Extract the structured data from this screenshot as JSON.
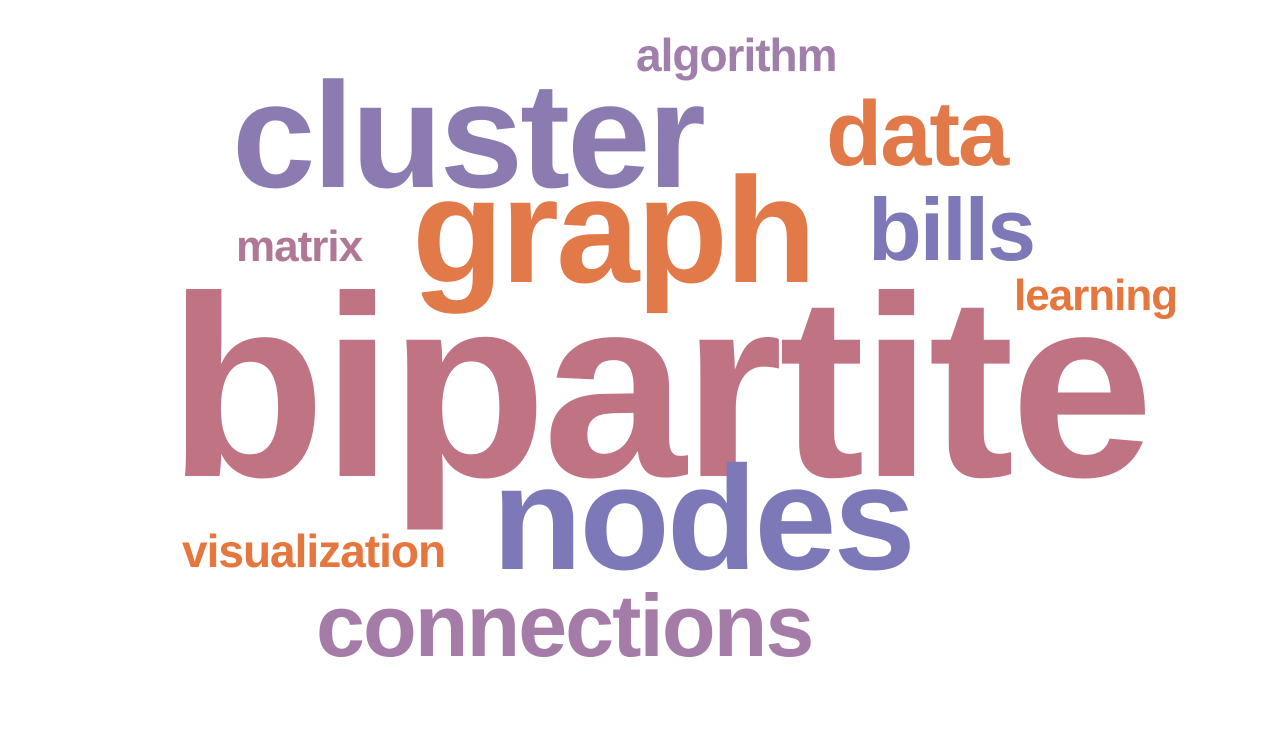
{
  "words": {
    "bipartite": {
      "text": "bipartite",
      "color": "#c07382"
    },
    "cluster": {
      "text": "cluster",
      "color": "#8c7bb0"
    },
    "graph": {
      "text": "graph",
      "color": "#e27948"
    },
    "nodes": {
      "text": "nodes",
      "color": "#7d79b8"
    },
    "connections": {
      "text": "connections",
      "color": "#a57ba8"
    },
    "data": {
      "text": "data",
      "color": "#e27948"
    },
    "bills": {
      "text": "bills",
      "color": "#7d79b8"
    },
    "algorithm": {
      "text": "algorithm",
      "color": "#a07fab"
    },
    "matrix": {
      "text": "matrix",
      "color": "#b07895"
    },
    "learning": {
      "text": "learning",
      "color": "#e5763e"
    },
    "visualization": {
      "text": "visualization",
      "color": "#e5763e"
    }
  }
}
